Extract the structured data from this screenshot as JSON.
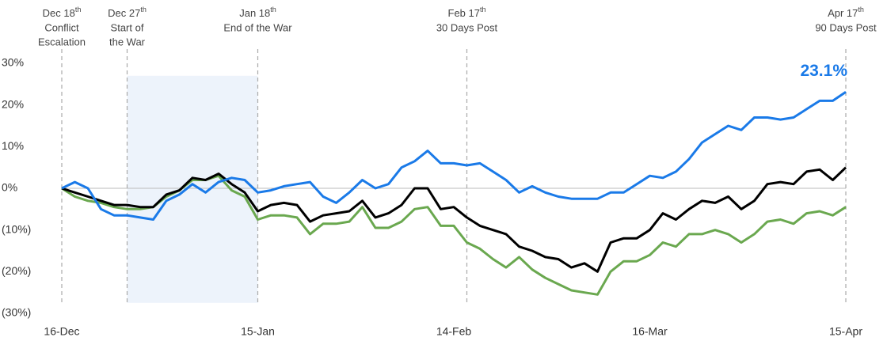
{
  "chart_data": {
    "type": "line",
    "xlim": [
      0,
      120
    ],
    "xticks": [
      {
        "value": 0,
        "label": "16-Dec"
      },
      {
        "value": 30,
        "label": "15-Jan"
      },
      {
        "value": 60,
        "label": "14-Feb"
      },
      {
        "value": 90,
        "label": "16-Mar"
      },
      {
        "value": 120,
        "label": "15-Apr"
      }
    ],
    "ylim": [
      -30,
      30
    ],
    "yticks": [
      {
        "value": 30,
        "label": "30%"
      },
      {
        "value": 20,
        "label": "20%"
      },
      {
        "value": 10,
        "label": "10%"
      },
      {
        "value": 0,
        "label": "0%"
      },
      {
        "value": -10,
        "label": "(10%)"
      },
      {
        "value": -20,
        "label": "(20%)"
      },
      {
        "value": -30,
        "label": "(30%)"
      }
    ],
    "shaded_span": [
      10,
      30
    ],
    "annotations": [
      {
        "x": 0,
        "date": "Dec 18",
        "suffix": "th",
        "lines": [
          "Conflict",
          "Escalation"
        ]
      },
      {
        "x": 10,
        "date": "Dec 27",
        "suffix": "th",
        "lines": [
          "Start of",
          "the War"
        ]
      },
      {
        "x": 30,
        "date": "Jan 18",
        "suffix": "th",
        "lines": [
          "End of the War"
        ]
      },
      {
        "x": 62,
        "date": "Feb 17",
        "suffix": "th",
        "lines": [
          "30 Days Post"
        ]
      },
      {
        "x": 120,
        "date": "Apr 17",
        "suffix": "th",
        "lines": [
          "90 Days Post"
        ]
      }
    ],
    "x": [
      0,
      2,
      4,
      6,
      8,
      10,
      12,
      14,
      16,
      18,
      20,
      22,
      24,
      26,
      28,
      30,
      32,
      34,
      36,
      38,
      40,
      42,
      44,
      46,
      48,
      50,
      52,
      54,
      56,
      58,
      60,
      62,
      64,
      66,
      68,
      70,
      72,
      74,
      76,
      78,
      80,
      82,
      84,
      86,
      88,
      90,
      92,
      94,
      96,
      98,
      100,
      102,
      104,
      106,
      108,
      110,
      112,
      114,
      116,
      118,
      120
    ],
    "series": [
      {
        "color": "#6aa84f",
        "values": [
          0,
          -2,
          -3,
          -3.5,
          -4.5,
          -5,
          -5,
          -4.5,
          -2,
          -0.5,
          2,
          2,
          3,
          -0.5,
          -2,
          -7.5,
          -6.5,
          -6.5,
          -7,
          -11,
          -8.5,
          -8.5,
          -8,
          -4.5,
          -9.5,
          -9.5,
          -8,
          -5,
          -4.5,
          -9,
          -9,
          -13,
          -14.5,
          -17,
          -19,
          -16.5,
          -19.5,
          -21.5,
          -23,
          -24.5,
          -25,
          -25.5,
          -20,
          -17.5,
          -17.5,
          -16,
          -13,
          -14,
          -11,
          -11,
          -10,
          -11,
          -13,
          -11,
          -8,
          -7.5,
          -8.5,
          -6,
          -5.5,
          -6.5,
          -4.5
        ]
      },
      {
        "color": "#000000",
        "values": [
          0,
          -1,
          -2,
          -3,
          -4,
          -4,
          -4.5,
          -4.5,
          -1.5,
          -0.5,
          2.5,
          2,
          3.5,
          1,
          -1,
          -5.5,
          -4,
          -3.5,
          -4,
          -8,
          -6.5,
          -6,
          -5.5,
          -3,
          -7,
          -6,
          -4,
          0,
          0,
          -5,
          -4.5,
          -7,
          -9,
          -10,
          -11,
          -14,
          -15,
          -16.5,
          -17,
          -19,
          -18,
          -20,
          -13,
          -12,
          -12,
          -10,
          -6,
          -7.5,
          -5,
          -3,
          -3.5,
          -2,
          -5,
          -3,
          1,
          1.5,
          1,
          4,
          4.5,
          2,
          5
        ]
      },
      {
        "color": "#1a7ae8",
        "values": [
          0,
          1.5,
          0,
          -5,
          -6.5,
          -6.5,
          -7,
          -7.5,
          -3,
          -1.5,
          1,
          -1,
          1.5,
          2.5,
          2,
          -1,
          -0.5,
          0.5,
          1,
          1.5,
          -2,
          -3.5,
          -1,
          2,
          0,
          1,
          5,
          6.5,
          9,
          6,
          6,
          5.5,
          6,
          4,
          2,
          -1,
          0.5,
          -1,
          -2,
          -2.5,
          -2.5,
          -2.5,
          -1,
          -1,
          1,
          3,
          2.5,
          4,
          7,
          11,
          13,
          15,
          14,
          17,
          17,
          16.5,
          17,
          19,
          21,
          21,
          23.1
        ],
        "value_labels": [
          null,
          null,
          null,
          null,
          null,
          null,
          null,
          null,
          null,
          null,
          null,
          null,
          null,
          null,
          null,
          null,
          null,
          null,
          null,
          null,
          null,
          null,
          null,
          null,
          null,
          null,
          null,
          null,
          null,
          null,
          null,
          null,
          null,
          null,
          null,
          null,
          null,
          null,
          null,
          null,
          null,
          null,
          null,
          null,
          null,
          null,
          null,
          null,
          null,
          null,
          null,
          null,
          null,
          null,
          null,
          null,
          null,
          null,
          null,
          null,
          "23.1%"
        ]
      }
    ]
  }
}
